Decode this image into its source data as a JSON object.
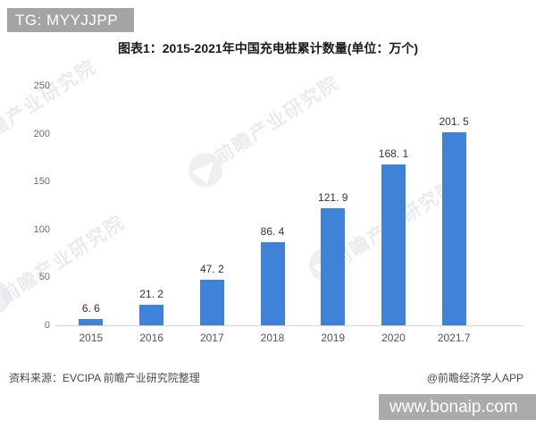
{
  "overlays": {
    "top_banner": "TG: MYYJJPP",
    "bottom_banner": "www.bonaip.com"
  },
  "title": "图表1：2015-2021年中国充电桩累计数量(单位：万个)",
  "footer": {
    "source": "资料来源：EVCIPA 前瞻产业研究院整理",
    "credit": "@前瞻经济学人APP"
  },
  "watermark": {
    "text": "前瞻产业研究院"
  },
  "colors": {
    "bar": "#3E83D8",
    "banner_gray": "#A6A6A6",
    "axis_line": "#D8D8D8"
  },
  "chart_data": {
    "type": "bar",
    "title": "图表1：2015-2021年中国充电桩累计数量(单位：万个)",
    "categories": [
      "2015",
      "2016",
      "2017",
      "2018",
      "2019",
      "2020",
      "2021.7"
    ],
    "values": [
      6.6,
      21.2,
      47.2,
      86.4,
      121.9,
      168.1,
      201.5
    ],
    "value_labels": [
      "6. 6",
      "21. 2",
      "47. 2",
      "86. 4",
      "121. 9",
      "168. 1",
      "201. 5"
    ],
    "xlabel": "",
    "ylabel": "",
    "ylim": [
      0,
      250
    ],
    "yticks": [
      0,
      50,
      100,
      150,
      200,
      250
    ],
    "grid": false,
    "legend": null,
    "unit": "万个"
  }
}
